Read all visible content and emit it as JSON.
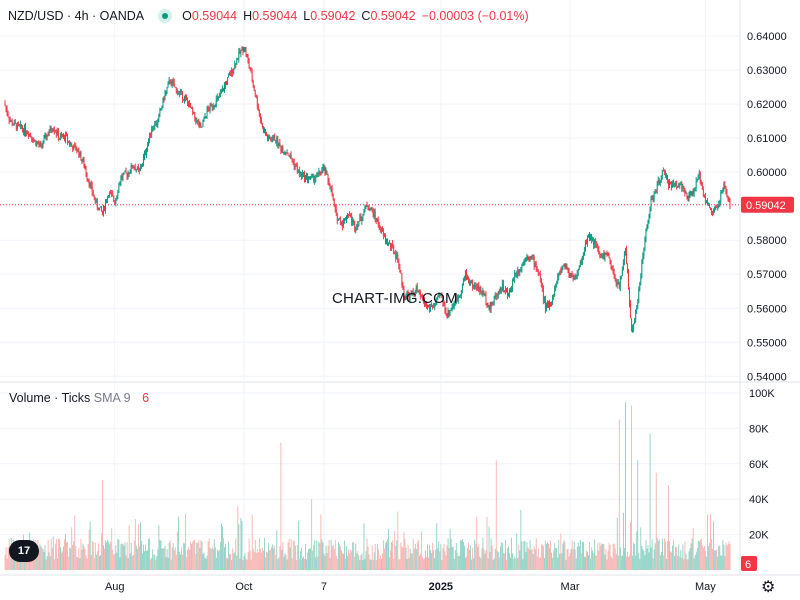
{
  "header": {
    "symbol": "NZD/USD · 4h · OANDA",
    "o_label": "O",
    "o_value": "0.59044",
    "h_label": "H",
    "h_value": "0.59044",
    "l_label": "L",
    "l_value": "0.59042",
    "c_label": "C",
    "c_value": "0.59042",
    "change": "−0.00003 (−0.01%)"
  },
  "volume_legend": {
    "label": "Volume · Ticks",
    "sma": "SMA 9",
    "value": "6"
  },
  "watermark": "CHART-IMG.COM",
  "logo_text": "17",
  "colors": {
    "up": "#089981",
    "down": "#f23645",
    "up_vol": "#7fcbbd",
    "down_vol": "#f7a9a7",
    "grid": "#f0f3fa",
    "last_price": "#f23645"
  },
  "chart_data": [
    {
      "type": "candlestick",
      "title": "",
      "y_ticks": [
        "0.64000",
        "0.63000",
        "0.62000",
        "0.61000",
        "0.60000",
        "0.59000",
        "0.58000",
        "0.57000",
        "0.56000",
        "0.55000",
        "0.54000"
      ],
      "ylim": [
        0.5395,
        0.6415
      ],
      "last_price": 0.59042,
      "last_price_label": "0.59042",
      "x_ticks": [
        "Aug",
        "Oct",
        "7",
        "2025",
        "Mar",
        "May"
      ],
      "x_tick_index": [
        18,
        39,
        52,
        71,
        92,
        114
      ],
      "series": [
        {
          "x": 0,
          "close": 0.6205
        },
        {
          "x": 1,
          "close": 0.615
        },
        {
          "x": 2,
          "close": 0.6135
        },
        {
          "x": 3,
          "close": 0.6128
        },
        {
          "x": 4,
          "close": 0.6118
        },
        {
          "x": 5,
          "close": 0.609
        },
        {
          "x": 6,
          "close": 0.6075
        },
        {
          "x": 7,
          "close": 0.611
        },
        {
          "x": 8,
          "close": 0.6135
        },
        {
          "x": 9,
          "close": 0.61
        },
        {
          "x": 10,
          "close": 0.6105
        },
        {
          "x": 11,
          "close": 0.6075
        },
        {
          "x": 12,
          "close": 0.6065
        },
        {
          "x": 13,
          "close": 0.602
        },
        {
          "x": 14,
          "close": 0.596
        },
        {
          "x": 15,
          "close": 0.5905
        },
        {
          "x": 16,
          "close": 0.588
        },
        {
          "x": 17,
          "close": 0.594
        },
        {
          "x": 18,
          "close": 0.5915
        },
        {
          "x": 19,
          "close": 0.5985
        },
        {
          "x": 20,
          "close": 0.5995
        },
        {
          "x": 21,
          "close": 0.602
        },
        {
          "x": 22,
          "close": 0.6
        },
        {
          "x": 23,
          "close": 0.606
        },
        {
          "x": 24,
          "close": 0.613
        },
        {
          "x": 25,
          "close": 0.615
        },
        {
          "x": 26,
          "close": 0.622
        },
        {
          "x": 27,
          "close": 0.627
        },
        {
          "x": 28,
          "close": 0.624
        },
        {
          "x": 29,
          "close": 0.6225
        },
        {
          "x": 30,
          "close": 0.62
        },
        {
          "x": 31,
          "close": 0.616
        },
        {
          "x": 32,
          "close": 0.6125
        },
        {
          "x": 33,
          "close": 0.618
        },
        {
          "x": 34,
          "close": 0.62
        },
        {
          "x": 35,
          "close": 0.622
        },
        {
          "x": 36,
          "close": 0.626
        },
        {
          "x": 37,
          "close": 0.6295
        },
        {
          "x": 38,
          "close": 0.634
        },
        {
          "x": 39,
          "close": 0.637
        },
        {
          "x": 40,
          "close": 0.63
        },
        {
          "x": 41,
          "close": 0.6215
        },
        {
          "x": 42,
          "close": 0.613
        },
        {
          "x": 43,
          "close": 0.6095
        },
        {
          "x": 44,
          "close": 0.61
        },
        {
          "x": 45,
          "close": 0.607
        },
        {
          "x": 46,
          "close": 0.606
        },
        {
          "x": 47,
          "close": 0.603
        },
        {
          "x": 48,
          "close": 0.5995
        },
        {
          "x": 49,
          "close": 0.5985
        },
        {
          "x": 50,
          "close": 0.598
        },
        {
          "x": 51,
          "close": 0.599
        },
        {
          "x": 52,
          "close": 0.601
        },
        {
          "x": 53,
          "close": 0.596
        },
        {
          "x": 54,
          "close": 0.587
        },
        {
          "x": 55,
          "close": 0.585
        },
        {
          "x": 56,
          "close": 0.588
        },
        {
          "x": 57,
          "close": 0.584
        },
        {
          "x": 58,
          "close": 0.5865
        },
        {
          "x": 59,
          "close": 0.5905
        },
        {
          "x": 60,
          "close": 0.588
        },
        {
          "x": 61,
          "close": 0.584
        },
        {
          "x": 62,
          "close": 0.58
        },
        {
          "x": 63,
          "close": 0.578
        },
        {
          "x": 64,
          "close": 0.5745
        },
        {
          "x": 65,
          "close": 0.564
        },
        {
          "x": 66,
          "close": 0.5635
        },
        {
          "x": 67,
          "close": 0.5655
        },
        {
          "x": 68,
          "close": 0.5625
        },
        {
          "x": 69,
          "close": 0.56
        },
        {
          "x": 70,
          "close": 0.561
        },
        {
          "x": 71,
          "close": 0.564
        },
        {
          "x": 72,
          "close": 0.558
        },
        {
          "x": 73,
          "close": 0.561
        },
        {
          "x": 74,
          "close": 0.564
        },
        {
          "x": 75,
          "close": 0.57
        },
        {
          "x": 76,
          "close": 0.567
        },
        {
          "x": 77,
          "close": 0.566
        },
        {
          "x": 78,
          "close": 0.564
        },
        {
          "x": 79,
          "close": 0.56
        },
        {
          "x": 80,
          "close": 0.564
        },
        {
          "x": 81,
          "close": 0.5665
        },
        {
          "x": 82,
          "close": 0.5635
        },
        {
          "x": 83,
          "close": 0.57
        },
        {
          "x": 84,
          "close": 0.572
        },
        {
          "x": 85,
          "close": 0.576
        },
        {
          "x": 86,
          "close": 0.574
        },
        {
          "x": 87,
          "close": 0.57
        },
        {
          "x": 88,
          "close": 0.56
        },
        {
          "x": 89,
          "close": 0.562
        },
        {
          "x": 90,
          "close": 0.569
        },
        {
          "x": 91,
          "close": 0.573
        },
        {
          "x": 92,
          "close": 0.57
        },
        {
          "x": 93,
          "close": 0.569
        },
        {
          "x": 94,
          "close": 0.575
        },
        {
          "x": 95,
          "close": 0.582
        },
        {
          "x": 96,
          "close": 0.579
        },
        {
          "x": 97,
          "close": 0.575
        },
        {
          "x": 98,
          "close": 0.576
        },
        {
          "x": 99,
          "close": 0.57
        },
        {
          "x": 100,
          "close": 0.566
        },
        {
          "x": 101,
          "close": 0.578
        },
        {
          "x": 102,
          "close": 0.553
        },
        {
          "x": 103,
          "close": 0.562
        },
        {
          "x": 104,
          "close": 0.578
        },
        {
          "x": 105,
          "close": 0.59
        },
        {
          "x": 106,
          "close": 0.595
        },
        {
          "x": 107,
          "close": 0.6
        },
        {
          "x": 108,
          "close": 0.597
        },
        {
          "x": 109,
          "close": 0.596
        },
        {
          "x": 110,
          "close": 0.597
        },
        {
          "x": 111,
          "close": 0.592
        },
        {
          "x": 112,
          "close": 0.594
        },
        {
          "x": 113,
          "close": 0.599
        },
        {
          "x": 114,
          "close": 0.592
        },
        {
          "x": 115,
          "close": 0.588
        },
        {
          "x": 116,
          "close": 0.59
        },
        {
          "x": 117,
          "close": 0.596
        },
        {
          "x": 118,
          "close": 0.5904
        }
      ]
    },
    {
      "type": "bar",
      "title": "",
      "y_ticks": [
        "100K",
        "80K",
        "60K",
        "40K",
        "20K"
      ],
      "ylim": [
        0,
        100000
      ],
      "last_value_label": "6",
      "spikes": [
        {
          "x": 16,
          "value": 51000
        },
        {
          "x": 38,
          "value": 36000
        },
        {
          "x": 45,
          "value": 72000
        },
        {
          "x": 50,
          "value": 40000
        },
        {
          "x": 64,
          "value": 33000
        },
        {
          "x": 80,
          "value": 62000
        },
        {
          "x": 84,
          "value": 34000
        },
        {
          "x": 100,
          "value": 85000
        },
        {
          "x": 101,
          "value": 95000
        },
        {
          "x": 102,
          "value": 93000
        },
        {
          "x": 103,
          "value": 62000
        },
        {
          "x": 105,
          "value": 77000
        },
        {
          "x": 106,
          "value": 55000
        },
        {
          "x": 108,
          "value": 48000
        }
      ],
      "baseline_value": 14000
    }
  ]
}
